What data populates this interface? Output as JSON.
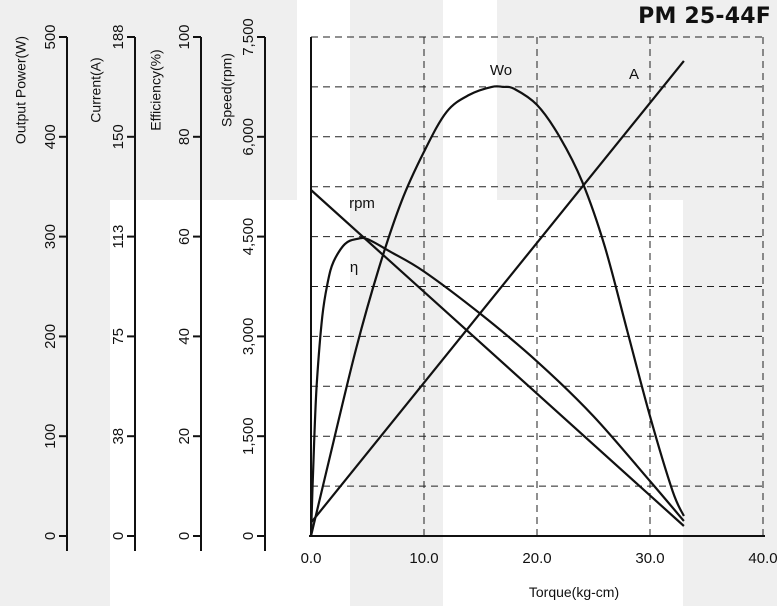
{
  "chart_data": {
    "type": "line",
    "title": "PM 25-44F",
    "xlabel": "Torque(kg-cm)",
    "x_ticks": [
      "0.0",
      "10.0",
      "20.0",
      "30.0",
      "40.0"
    ],
    "xlim": [
      0,
      40
    ],
    "grid": true,
    "y_axes": [
      {
        "label": "Output Power(W)",
        "ticks": [
          "0",
          "100",
          "200",
          "300",
          "400",
          "500"
        ]
      },
      {
        "label": "Current(A)",
        "ticks": [
          "0",
          "38",
          "75",
          "113",
          "150",
          "188"
        ]
      },
      {
        "label": "Efficiency(%)",
        "ticks": [
          "0",
          "20",
          "40",
          "60",
          "80",
          "100"
        ]
      },
      {
        "label": "Speed(rpm)",
        "ticks": [
          "0",
          "1,500",
          "3,000",
          "4,500",
          "6,000",
          "7,500"
        ]
      }
    ],
    "series": [
      {
        "name": "Wo",
        "axis": "Output Power(W)",
        "x": [
          0,
          2,
          4,
          6,
          8,
          10,
          12,
          14,
          16,
          17,
          18,
          20,
          22,
          24,
          26,
          28,
          30,
          32,
          33
        ],
        "y": [
          0,
          95,
          188,
          268,
          335,
          385,
          425,
          442,
          450,
          450,
          448,
          432,
          400,
          355,
          290,
          205,
          120,
          45,
          20
        ]
      },
      {
        "name": "A",
        "axis": "Current(A)",
        "x": [
          0,
          33
        ],
        "y": [
          5,
          179
        ]
      },
      {
        "name": "rpm",
        "axis": "Speed(rpm)",
        "x": [
          0,
          33
        ],
        "y": [
          5200,
          150
        ]
      },
      {
        "name": "η",
        "axis": "Efficiency(%)",
        "x": [
          0,
          0.2,
          0.5,
          1,
          1.5,
          2,
          3,
          4,
          5,
          7,
          10,
          15,
          20,
          25,
          30,
          33
        ],
        "y": [
          0,
          14,
          30,
          44,
          51,
          55,
          58.5,
          59.5,
          59.5,
          57,
          53,
          44.5,
          35,
          24,
          11,
          3
        ]
      }
    ],
    "curve_labels": [
      "Wo",
      "A",
      "rpm",
      "η"
    ]
  }
}
